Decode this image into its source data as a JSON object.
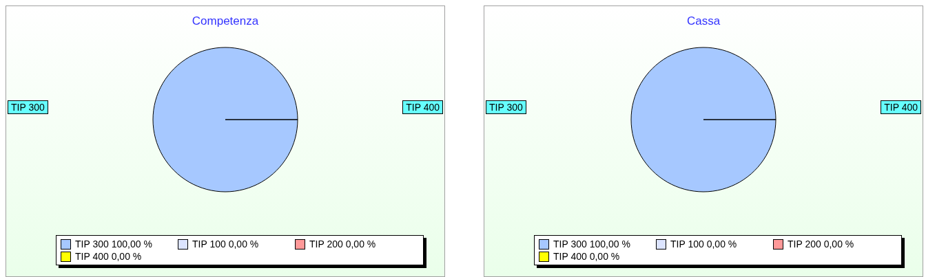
{
  "chart_data": [
    {
      "type": "pie",
      "title": "Competenza",
      "categories": [
        "TIP 300",
        "TIP 100",
        "TIP 200",
        "TIP 400"
      ],
      "values": [
        100,
        0,
        0,
        0
      ],
      "colors": [
        "#a6c8ff",
        "#dce4ff",
        "#ff9999",
        "#ffff00"
      ],
      "value_labels": [
        "100,00 %",
        "0,00 %",
        "0,00 %",
        "0,00 %"
      ],
      "legend": "bottom",
      "annotations": [
        "TIP 300",
        "TIP 400"
      ]
    },
    {
      "type": "pie",
      "title": "Cassa",
      "categories": [
        "TIP 300",
        "TIP 100",
        "TIP 200",
        "TIP 400"
      ],
      "values": [
        100,
        0,
        0,
        0
      ],
      "colors": [
        "#a6c8ff",
        "#dce4ff",
        "#ff9999",
        "#ffff00"
      ],
      "value_labels": [
        "100,00 %",
        "0,00 %",
        "0,00 %",
        "0,00 %"
      ],
      "legend": "bottom",
      "annotations": [
        "TIP 300",
        "TIP 400"
      ]
    }
  ]
}
